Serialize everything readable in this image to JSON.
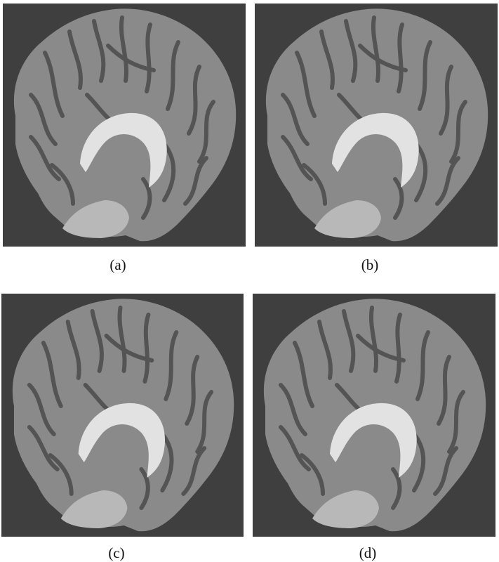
{
  "figure": {
    "panels": [
      {
        "id": "a",
        "caption": "(a)",
        "image": "brain-mri-sagittal-slice"
      },
      {
        "id": "b",
        "caption": "(b)",
        "image": "brain-mri-sagittal-slice"
      },
      {
        "id": "c",
        "caption": "(c)",
        "image": "brain-mri-sagittal-slice"
      },
      {
        "id": "d",
        "caption": "(d)",
        "image": "brain-mri-sagittal-slice"
      }
    ],
    "colors": {
      "background": "#3f3f3f",
      "tissue": "#8a8a8a",
      "sulci": "#545454",
      "corpus_callosum": "#e2e2e2"
    }
  }
}
